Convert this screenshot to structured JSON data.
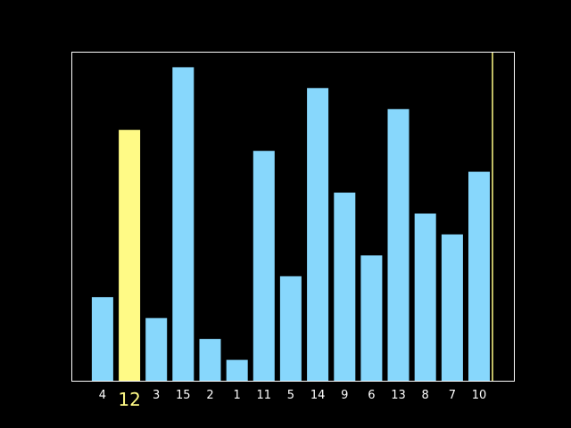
{
  "chart_data": {
    "type": "bar",
    "categories": [
      "4",
      "12",
      "3",
      "15",
      "2",
      "1",
      "11",
      "5",
      "14",
      "9",
      "6",
      "13",
      "8",
      "7",
      "10"
    ],
    "values": [
      4,
      12,
      3,
      15,
      2,
      1,
      11,
      5,
      14,
      9,
      6,
      13,
      8,
      7,
      10
    ],
    "highlighted_category": "12",
    "ylim": [
      0,
      15.7
    ],
    "y_ticks_visible": false,
    "grid": false,
    "title": "",
    "xlabel": "",
    "ylabel": "",
    "colors": {
      "background": "#000000",
      "bar": "#87d7fc",
      "highlight": "#fffa86",
      "axes": "#ffffff",
      "tick_label": "#ffffff",
      "marker_line": "#fffa86"
    }
  }
}
